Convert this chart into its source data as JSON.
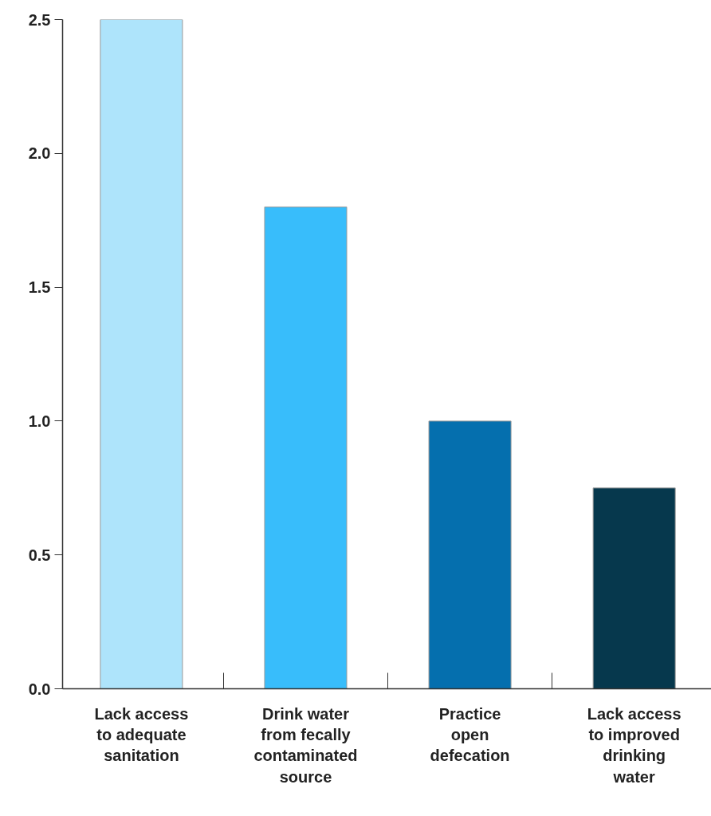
{
  "chart_data": {
    "type": "bar",
    "categories": [
      "Lack access to adequate sanitation",
      "Drink water from fecally contaminated source",
      "Practice open defecation",
      "Lack access to improved drinking water"
    ],
    "values": [
      2.5,
      1.8,
      1.0,
      0.75
    ],
    "colors": [
      "#aee4fb",
      "#38bdfb",
      "#056fae",
      "#06384d"
    ],
    "ylim": [
      0,
      2.5
    ],
    "yticks": [
      {
        "value": 0,
        "label": "0.0"
      },
      {
        "value": 0.5,
        "label": "0.5"
      },
      {
        "value": 1,
        "label": "1.0"
      },
      {
        "value": 1.5,
        "label": "1.5"
      },
      {
        "value": 2,
        "label": "2.0"
      },
      {
        "value": 2.5,
        "label": "2.5"
      }
    ],
    "grid": false
  }
}
